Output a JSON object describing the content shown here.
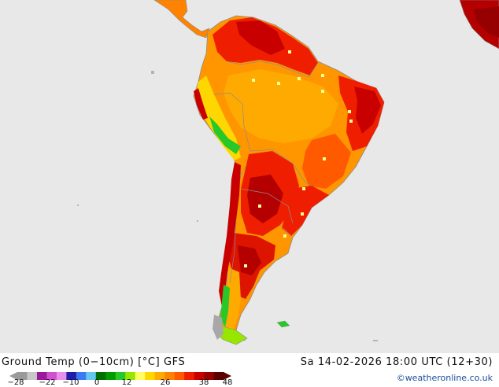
{
  "map": {
    "title": "Ground Temp (0−10cm) [°C] GFS",
    "datetime": "Sa 14-02-2026 18:00 UTC (12+30)",
    "credit": "©weatheronline.co.uk"
  },
  "legend": {
    "ticks": [
      "-28",
      "-22",
      "-10",
      "0",
      "12",
      "26",
      "38",
      "48"
    ],
    "colors": [
      "#9a9a9a",
      "#c8c8c8",
      "#9b1a9b",
      "#d24fd2",
      "#e890e8",
      "#1e1ea8",
      "#3c78f0",
      "#64c8f0",
      "#006e00",
      "#009c00",
      "#28c828",
      "#96e600",
      "#ffff64",
      "#ffd700",
      "#ffaa00",
      "#ff8200",
      "#ff5a00",
      "#f01e00",
      "#c80000",
      "#960000",
      "#5a0000"
    ]
  },
  "colors": {
    "sea": "#e8e8e8",
    "border": "#8c8c8c"
  }
}
